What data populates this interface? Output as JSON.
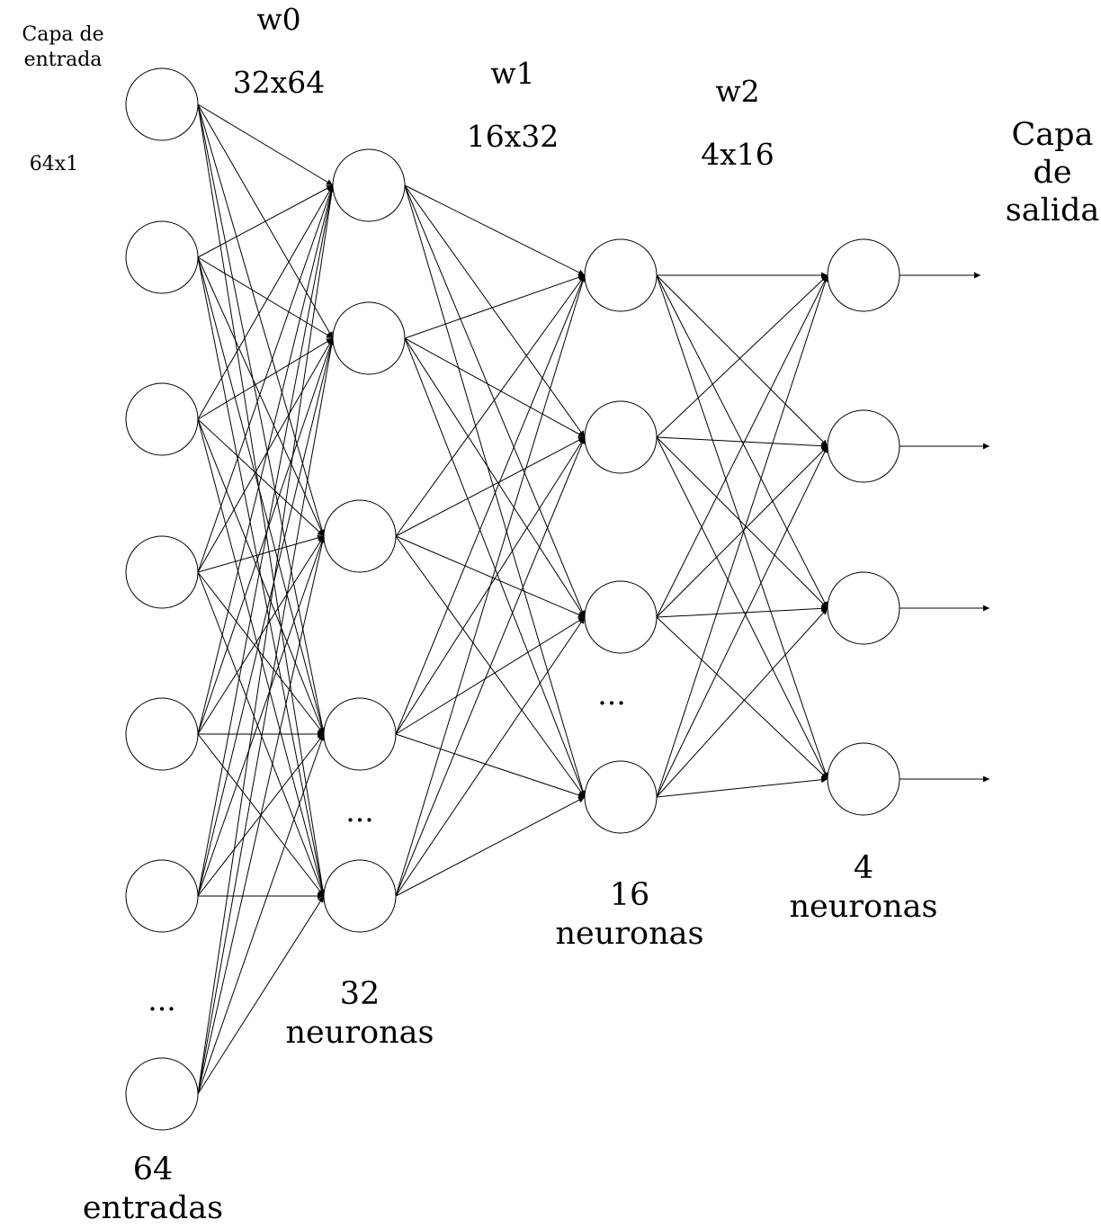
{
  "labels": {
    "input_layer": [
      "Capa de",
      "entrada"
    ],
    "input_shape": "64x1",
    "w0_name": "w0",
    "w0_shape": "32x64",
    "w1_name": "w1",
    "w1_shape": "16x32",
    "w2_name": "w2",
    "w2_shape": "4x16",
    "output_layer": [
      "Capa",
      "de",
      "salida"
    ],
    "layer0_count": [
      "64",
      "entradas"
    ],
    "layer1_count": [
      "32",
      "neuronas"
    ],
    "layer2_count": [
      "16",
      "neuronas"
    ],
    "layer3_count": [
      "4",
      "neuronas"
    ],
    "ellipsis": "..."
  },
  "colors": {
    "stroke": "#000000",
    "background": "#ffffff"
  }
}
